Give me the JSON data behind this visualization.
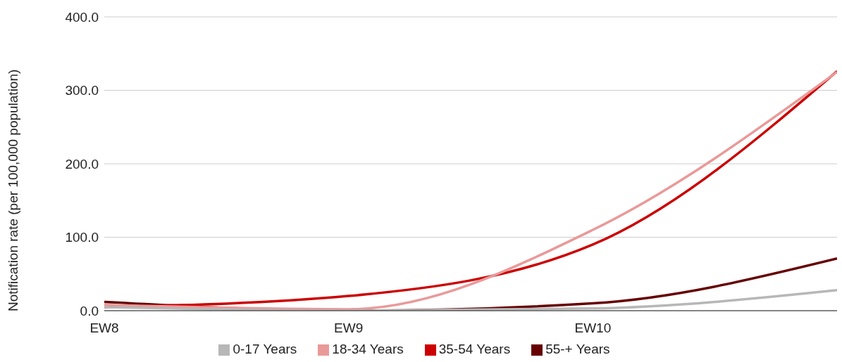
{
  "chart_data": {
    "type": "line",
    "ylabel": "Notification rate (per 100,000 population)",
    "categories": [
      "EW8",
      "EW9",
      "EW10",
      null
    ],
    "series": [
      {
        "name": "0-17 Years",
        "color": "#b7b7b7",
        "values": [
          5,
          0,
          3,
          28
        ]
      },
      {
        "name": "18-34 Years",
        "color": "#ea9999",
        "values": [
          8,
          2,
          110,
          325
        ]
      },
      {
        "name": "35-54 Years",
        "color": "#cc0000",
        "values": [
          5,
          20,
          90,
          326
        ]
      },
      {
        "name": "55-+ Years",
        "color": "#660000",
        "values": [
          12,
          0,
          10,
          71
        ]
      }
    ],
    "ylim": [
      0,
      400
    ],
    "yticks": [
      {
        "value": 0,
        "label": "0.0"
      },
      {
        "value": 100,
        "label": "100.0"
      },
      {
        "value": 200,
        "label": "200.0"
      },
      {
        "value": 300,
        "label": "300.0"
      },
      {
        "value": 400,
        "label": "400.0"
      }
    ],
    "grid": "y",
    "legend": "bottom",
    "marker": "none",
    "line_style": "solid"
  }
}
